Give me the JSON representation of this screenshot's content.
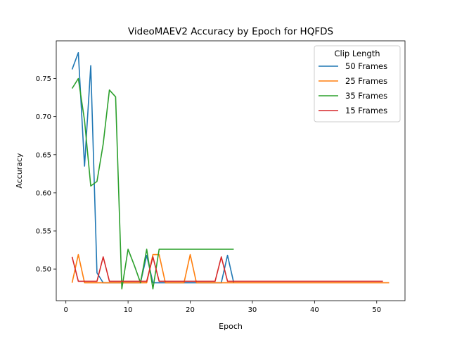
{
  "chart_data": {
    "type": "line",
    "title": "VideoMAEV2 Accuracy by Epoch for HQFDS",
    "xlabel": "Epoch",
    "ylabel": "Accuracy",
    "xlim": [
      -1.55,
      54.55
    ],
    "ylim": [
      0.4585,
      0.7995
    ],
    "xticks": [
      0,
      10,
      20,
      30,
      40,
      50
    ],
    "yticks": [
      0.5,
      0.55,
      0.6,
      0.65,
      0.7,
      0.75
    ],
    "grid": false,
    "legend": {
      "title": "Clip Length",
      "placement": "top-right"
    },
    "series": [
      {
        "name": "50 Frames",
        "color": "#1f77b4",
        "x": [
          1,
          2,
          3,
          4,
          5,
          6,
          7,
          8,
          9,
          10,
          11,
          12,
          13,
          14,
          15,
          16,
          17,
          18,
          19,
          20,
          21,
          22,
          23,
          24,
          25,
          26,
          27
        ],
        "y": [
          0.762,
          0.784,
          0.635,
          0.767,
          0.495,
          0.482,
          0.482,
          0.482,
          0.482,
          0.482,
          0.482,
          0.482,
          0.518,
          0.482,
          0.482,
          0.482,
          0.482,
          0.482,
          0.482,
          0.482,
          0.482,
          0.482,
          0.482,
          0.482,
          0.482,
          0.518,
          0.482
        ]
      },
      {
        "name": "25 Frames",
        "color": "#ff7f0e",
        "x": [
          1,
          2,
          3,
          4,
          5,
          6,
          7,
          8,
          9,
          10,
          11,
          12,
          13,
          14,
          15,
          16,
          17,
          18,
          19,
          20,
          21,
          22,
          23,
          24,
          25,
          26,
          27,
          28,
          29,
          30,
          31,
          32,
          33,
          34,
          35,
          36,
          37,
          38,
          39,
          40,
          41,
          42,
          43,
          44,
          45,
          46,
          47,
          48,
          49,
          50,
          51,
          52
        ],
        "y": [
          0.482,
          0.519,
          0.482,
          0.482,
          0.482,
          0.482,
          0.482,
          0.482,
          0.482,
          0.482,
          0.482,
          0.482,
          0.482,
          0.519,
          0.519,
          0.482,
          0.482,
          0.482,
          0.482,
          0.519,
          0.482,
          0.482,
          0.482,
          0.482,
          0.482,
          0.482,
          0.482,
          0.482,
          0.482,
          0.482,
          0.482,
          0.482,
          0.482,
          0.482,
          0.482,
          0.482,
          0.482,
          0.482,
          0.482,
          0.482,
          0.482,
          0.482,
          0.482,
          0.482,
          0.482,
          0.482,
          0.482,
          0.482,
          0.482,
          0.482,
          0.482,
          0.482
        ]
      },
      {
        "name": "35 Frames",
        "color": "#2ca02c",
        "x": [
          1,
          2,
          3,
          4,
          5,
          6,
          7,
          8,
          9,
          10,
          11,
          12,
          13,
          14,
          15,
          16,
          17,
          18,
          19,
          20,
          21,
          22,
          23,
          24,
          25,
          26,
          27
        ],
        "y": [
          0.737,
          0.75,
          0.695,
          0.609,
          0.615,
          0.664,
          0.735,
          0.726,
          0.474,
          0.526,
          0.505,
          0.482,
          0.526,
          0.474,
          0.526,
          0.526,
          0.526,
          0.526,
          0.526,
          0.526,
          0.526,
          0.526,
          0.526,
          0.526,
          0.526,
          0.526,
          0.526
        ]
      },
      {
        "name": "15 Frames",
        "color": "#d62728",
        "x": [
          1,
          2,
          3,
          4,
          5,
          6,
          7,
          8,
          9,
          10,
          11,
          12,
          13,
          14,
          15,
          16,
          17,
          18,
          19,
          20,
          21,
          22,
          23,
          24,
          25,
          26,
          27,
          28,
          29,
          30,
          31,
          32,
          33,
          34,
          35,
          36,
          37,
          38,
          39,
          40,
          41,
          42,
          43,
          44,
          45,
          46,
          47,
          48,
          49,
          50,
          51
        ],
        "y": [
          0.516,
          0.484,
          0.484,
          0.484,
          0.484,
          0.516,
          0.484,
          0.484,
          0.484,
          0.484,
          0.484,
          0.484,
          0.484,
          0.516,
          0.484,
          0.484,
          0.484,
          0.484,
          0.484,
          0.484,
          0.484,
          0.484,
          0.484,
          0.484,
          0.516,
          0.484,
          0.484,
          0.484,
          0.484,
          0.484,
          0.484,
          0.484,
          0.484,
          0.484,
          0.484,
          0.484,
          0.484,
          0.484,
          0.484,
          0.484,
          0.484,
          0.484,
          0.484,
          0.484,
          0.484,
          0.484,
          0.484,
          0.484,
          0.484,
          0.484,
          0.484
        ]
      }
    ]
  }
}
